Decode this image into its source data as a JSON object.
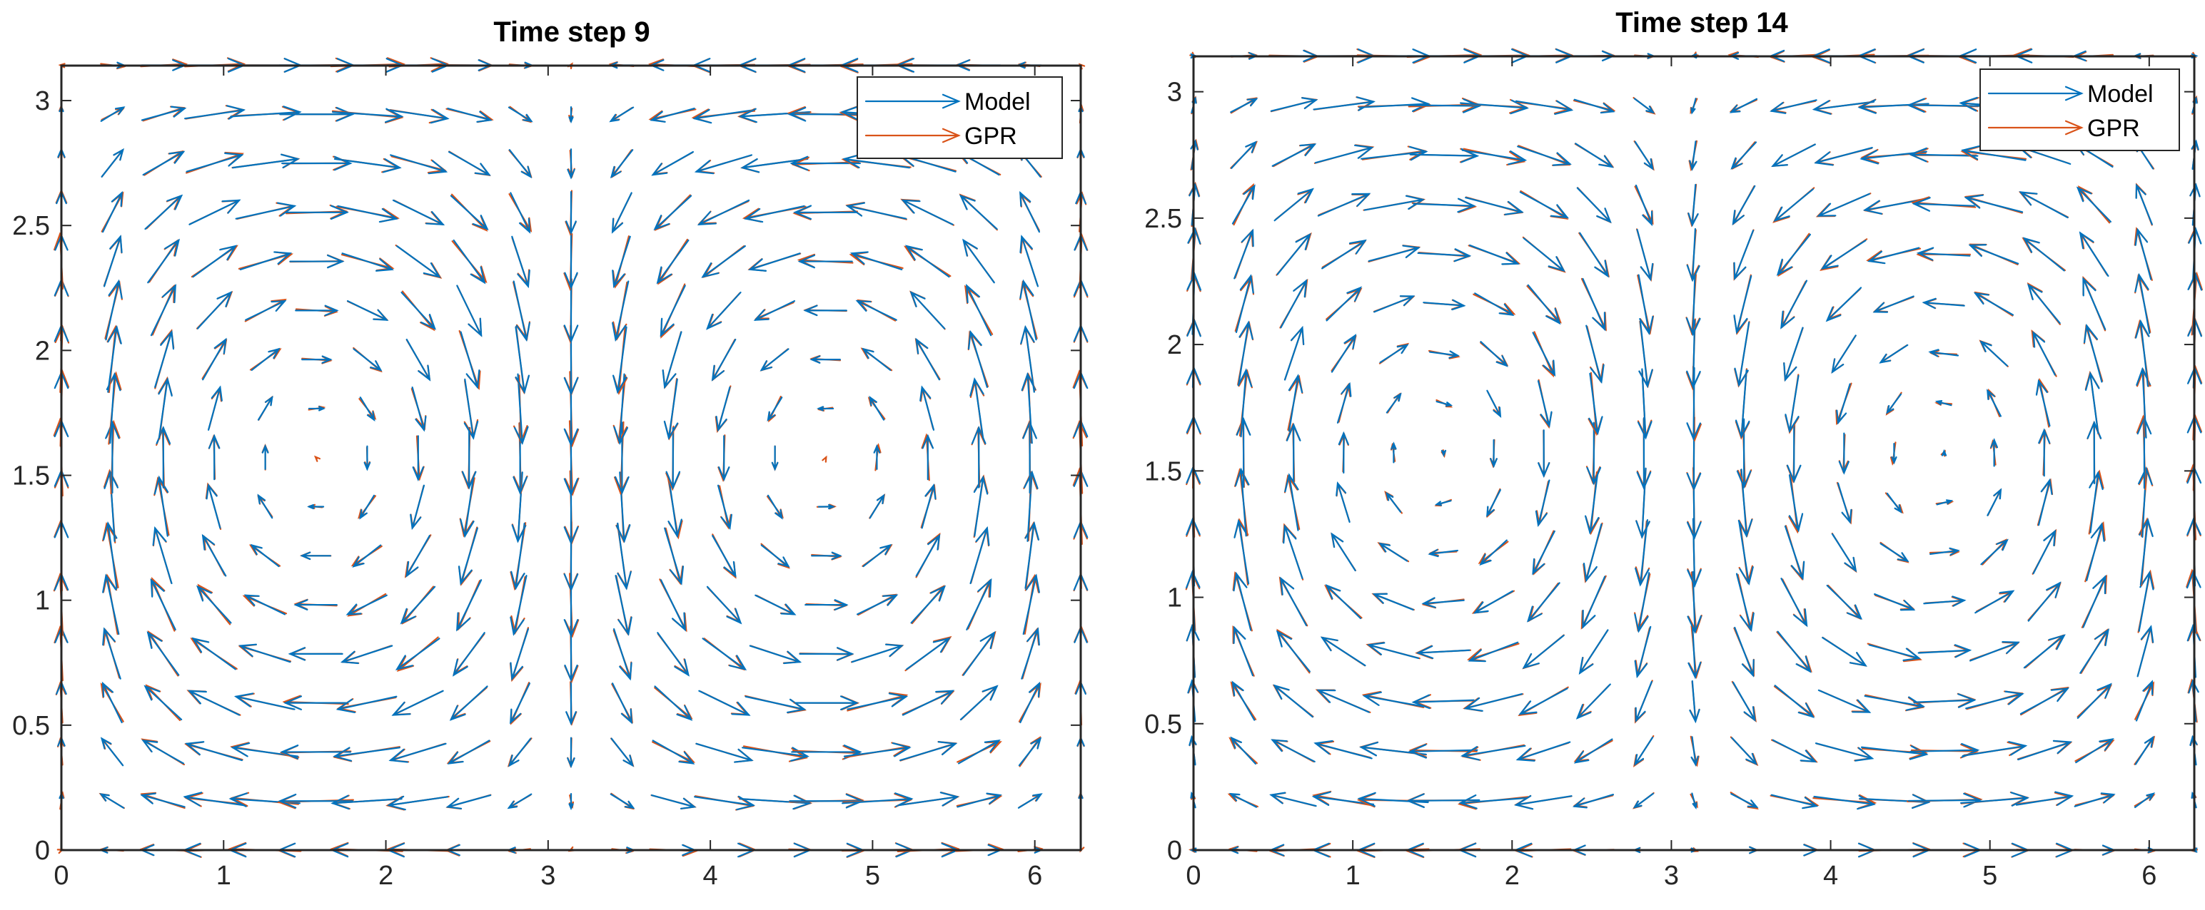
{
  "chart_data": [
    {
      "type": "quiver",
      "title": "Time step 9",
      "xlabel": "",
      "ylabel": "",
      "xlim": [
        0,
        6.283
      ],
      "ylim": [
        0,
        3.14
      ],
      "xticks": [
        "0",
        "1",
        "2",
        "3",
        "4",
        "5",
        "6"
      ],
      "yticks": [
        "0",
        "0.5",
        "1",
        "1.5",
        "2",
        "2.5",
        "3"
      ],
      "grid": false,
      "legend": {
        "placement": "top-right",
        "entries": [
          "Model",
          "GPR"
        ]
      },
      "field": "vortex pair: u = -sin(x)cos(y), v = cos(x)sin(y), sampled on a 21x17 grid over [0, 2pi] x [0, pi]",
      "series": [
        {
          "name": "Model",
          "color": "#0072BD"
        },
        {
          "name": "GPR",
          "color": "#D95319"
        }
      ]
    },
    {
      "type": "quiver",
      "title": "Time step 14",
      "xlabel": "",
      "ylabel": "",
      "xlim": [
        0,
        6.283
      ],
      "ylim": [
        0,
        3.14
      ],
      "xticks": [
        "0",
        "1",
        "2",
        "3",
        "4",
        "5",
        "6"
      ],
      "yticks": [
        "0",
        "0.5",
        "1",
        "1.5",
        "2",
        "2.5",
        "3"
      ],
      "grid": false,
      "legend": {
        "placement": "top-right",
        "entries": [
          "Model",
          "GPR"
        ]
      },
      "field": "vortex pair: u = -sin(x)cos(y), v = cos(x)sin(y), sampled on a 21x17 grid over [0, 2pi] x [0, pi]",
      "series": [
        {
          "name": "Model",
          "color": "#0072BD"
        },
        {
          "name": "GPR",
          "color": "#D95319"
        }
      ]
    }
  ]
}
